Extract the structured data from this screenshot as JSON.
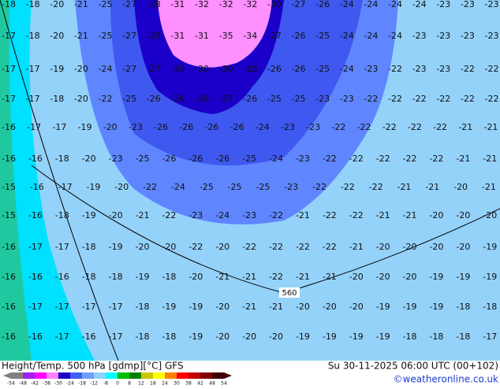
{
  "map": {
    "rows": [
      [
        "-18",
        "-18",
        "-20",
        "-21",
        "-25",
        "-27",
        "-28",
        "-31",
        "-32",
        "-32",
        "-32",
        "-30",
        "-27",
        "-26",
        "-24",
        "-24",
        "-24",
        "-24",
        "-23",
        "-23",
        "-23"
      ],
      [
        "-17",
        "-18",
        "-20",
        "-21",
        "-25",
        "-27",
        "-28",
        "-31",
        "-31",
        "-35",
        "-34",
        "-27",
        "-26",
        "-25",
        "-24",
        "-24",
        "-24",
        "-23",
        "-23",
        "-23",
        "-23"
      ],
      [
        "-17",
        "-17",
        "-19",
        "-20",
        "-24",
        "-27",
        "-27",
        "-30",
        "-30",
        "-30",
        "-28",
        "-26",
        "-26",
        "-25",
        "-24",
        "-23",
        "-22",
        "-23",
        "-23",
        "-22",
        "-22"
      ],
      [
        "-17",
        "-17",
        "-18",
        "-20",
        "-22",
        "-25",
        "-26",
        "-26",
        "-28",
        "-27",
        "-26",
        "-25",
        "-25",
        "-23",
        "-23",
        "-22",
        "-22",
        "-22",
        "-22",
        "-22",
        "-22"
      ],
      [
        "-16",
        "-17",
        "-17",
        "-19",
        "-20",
        "-23",
        "-26",
        "-26",
        "-26",
        "-26",
        "-24",
        "-23",
        "-23",
        "-22",
        "-22",
        "-22",
        "-22",
        "-22",
        "-21",
        "-21"
      ],
      [
        "-16",
        "-16",
        "-18",
        "-20",
        "-23",
        "-25",
        "-26",
        "-26",
        "-26",
        "-25",
        "-24",
        "-23",
        "-22",
        "-22",
        "-22",
        "-22",
        "-22",
        "-21",
        "-21"
      ],
      [
        "-15",
        "-16",
        "-17",
        "-19",
        "-20",
        "-22",
        "-24",
        "-25",
        "-25",
        "-25",
        "-23",
        "-22",
        "-22",
        "-22",
        "-21",
        "-21",
        "-20",
        "-21"
      ],
      [
        "-15",
        "-16",
        "-18",
        "-19",
        "-20",
        "-21",
        "-22",
        "-23",
        "-24",
        "-23",
        "-22",
        "-21",
        "-22",
        "-22",
        "-21",
        "-21",
        "-20",
        "-20",
        "-20"
      ],
      [
        "-16",
        "-17",
        "-17",
        "-18",
        "-19",
        "-20",
        "-20",
        "-22",
        "-20",
        "-22",
        "-22",
        "-22",
        "-22",
        "-21",
        "-20",
        "-20",
        "-20",
        "-20",
        "-19"
      ],
      [
        "-16",
        "-16",
        "-16",
        "-18",
        "-18",
        "-19",
        "-18",
        "-20",
        "-21",
        "-21",
        "-22",
        "-21",
        "-21",
        "-20",
        "-20",
        "-20",
        "-19",
        "-19",
        "-19"
      ],
      [
        "-16",
        "-17",
        "-17",
        "-17",
        "-17",
        "-18",
        "-19",
        "-19",
        "-20",
        "-21",
        "-21",
        "-20",
        "-20",
        "-20",
        "-19",
        "-19",
        "-19",
        "-18",
        "-18"
      ],
      [
        "-16",
        "-16",
        "-17",
        "-16",
        "-17",
        "-18",
        "-18",
        "-19",
        "-20",
        "-20",
        "-20",
        "-19",
        "-19",
        "-19",
        "-19",
        "-18",
        "-18",
        "-18",
        "-17"
      ]
    ],
    "contour_label": "560"
  },
  "footer": {
    "title": "Height/Temp. 500 hPa [gdmp][°C] GFS",
    "time": "Su 30-11-2025 06:00 UTC (00+102)",
    "credit": "©weatheronline.co.uk"
  },
  "legend": {
    "labels": [
      "-54",
      "-48",
      "-42",
      "-38",
      "-30",
      "-24",
      "-18",
      "-12",
      "-8",
      "0",
      "8",
      "12",
      "18",
      "24",
      "30",
      "38",
      "42",
      "48",
      "54"
    ],
    "colors": [
      "#808080",
      "#a020f0",
      "#ff00ff",
      "#ff80ff",
      "#1a00c8",
      "#3f5ff0",
      "#6fa0ff",
      "#8fd0ff",
      "#00ffff",
      "#00c000",
      "#008000",
      "#c8c800",
      "#ffff00",
      "#ff8000",
      "#ff0000",
      "#c00000",
      "#800000",
      "#400000"
    ]
  }
}
